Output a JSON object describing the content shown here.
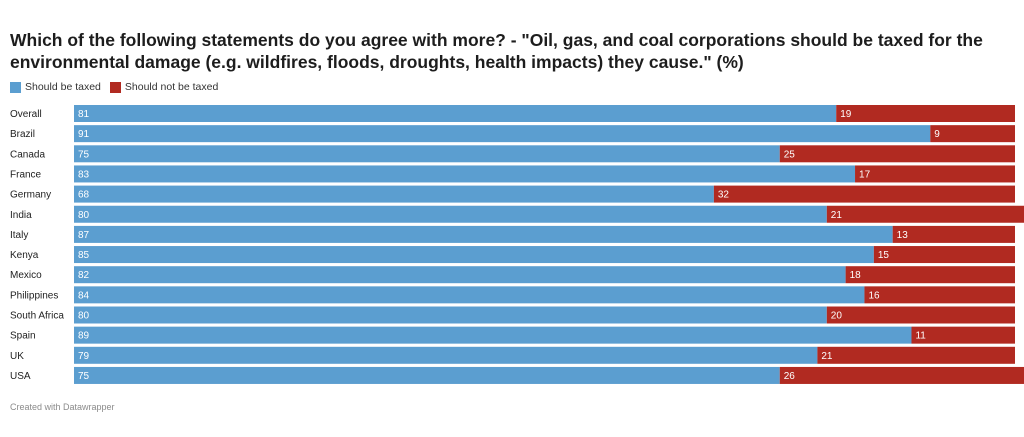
{
  "chart_data": {
    "type": "bar",
    "orientation": "horizontal",
    "stacked": true,
    "title": "Which of the following statements do you agree with more? - \"Oil, gas, and coal corporations should be taxed for the environmental damage (e.g. wildfires, floods, droughts, health impacts) they cause.\"  (%)",
    "categories": [
      "Overall",
      "Brazil",
      "Canada",
      "France",
      "Germany",
      "India",
      "Italy",
      "Kenya",
      "Mexico",
      "Philippines",
      "South Africa",
      "Spain",
      "UK",
      "USA"
    ],
    "series": [
      {
        "name": "Should be taxed",
        "color": "#5b9ed0",
        "values": [
          81,
          91,
          75,
          83,
          68,
          80,
          87,
          85,
          82,
          84,
          80,
          89,
          79,
          75
        ]
      },
      {
        "name": "Should not be taxed",
        "color": "#b12a21",
        "values": [
          19,
          9,
          25,
          17,
          32,
          21,
          13,
          15,
          18,
          16,
          20,
          11,
          21,
          26
        ]
      }
    ],
    "xlim": [
      0,
      100
    ],
    "grid": false,
    "legend_position": "top-left"
  },
  "legend": {
    "items": [
      {
        "label": "Should be taxed",
        "color": "#5b9ed0"
      },
      {
        "label": "Should not be taxed",
        "color": "#b12a21"
      }
    ]
  },
  "footer": {
    "credit": "Created with Datawrapper"
  }
}
